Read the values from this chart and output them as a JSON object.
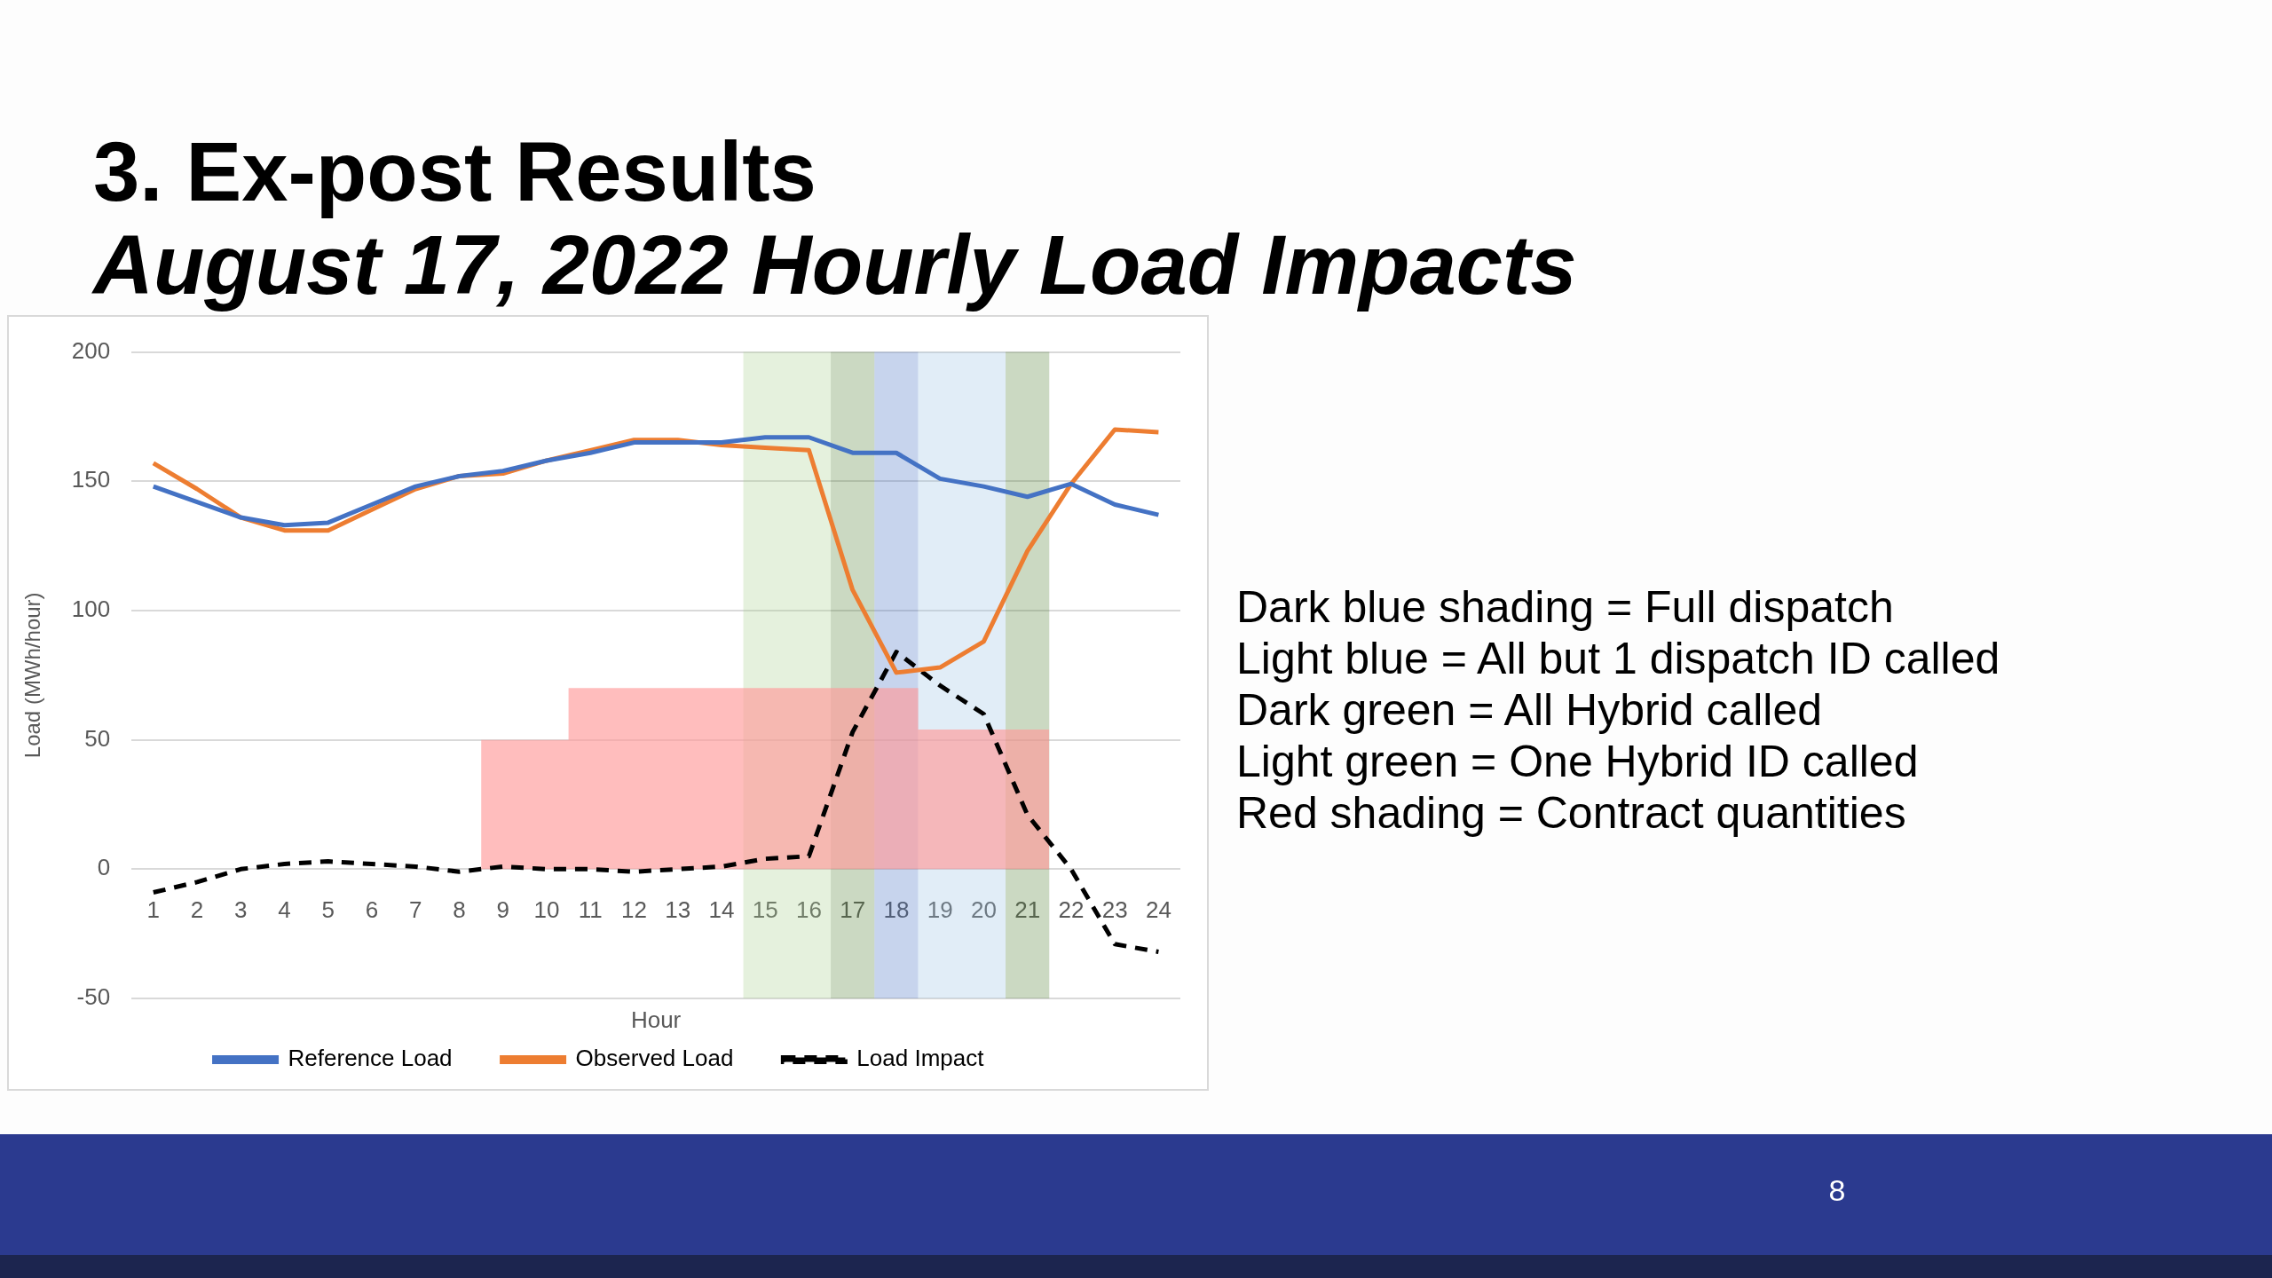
{
  "chart_data": {
    "type": "line",
    "title": "3. Ex-post Results",
    "subtitle": "August 17, 2022 Hourly Load Impacts",
    "xlabel": "Hour",
    "ylabel": "Load (MWh/hour)",
    "x": [
      1,
      2,
      3,
      4,
      5,
      6,
      7,
      8,
      9,
      10,
      11,
      12,
      13,
      14,
      15,
      16,
      17,
      18,
      19,
      20,
      21,
      22,
      23,
      24
    ],
    "xlim": [
      0.5,
      24.5
    ],
    "xticks": [
      1,
      2,
      3,
      4,
      5,
      6,
      7,
      8,
      9,
      10,
      11,
      12,
      13,
      14,
      15,
      16,
      17,
      18,
      19,
      20,
      21,
      22,
      23,
      24
    ],
    "ylim": [
      -50,
      200
    ],
    "yticks": [
      -50,
      0,
      50,
      100,
      150,
      200
    ],
    "grid": "y",
    "legend": "bottom",
    "marker": "none",
    "series": [
      {
        "type": "area",
        "color": "#ff9999",
        "x": [
          8.5,
          10.5,
          10.5,
          18.5,
          18.5,
          21.5
        ],
        "values": [
          50,
          50,
          70,
          70,
          54,
          54
        ]
      },
      {
        "name": "Reference Load",
        "color": "#4472c4",
        "line_style": "solid",
        "values": [
          148,
          142,
          136,
          133,
          134,
          141,
          148,
          152,
          154,
          158,
          161,
          165,
          165,
          165,
          167,
          167,
          161,
          161,
          151,
          148,
          144,
          149,
          141,
          137
        ]
      },
      {
        "name": "Observed Load",
        "color": "#ed7d31",
        "line_style": "solid",
        "values": [
          157,
          147,
          136,
          131,
          131,
          139,
          147,
          152,
          153,
          158,
          162,
          166,
          166,
          164,
          163,
          162,
          108,
          76,
          78,
          88,
          123,
          149,
          170,
          169
        ]
      },
      {
        "name": "Load Impact",
        "color": "#000000",
        "line_style": "dashed",
        "values": [
          -9,
          -5,
          0,
          2,
          3,
          2,
          1,
          -1,
          1,
          0,
          0,
          -1,
          0,
          1,
          4,
          5,
          53,
          84,
          71,
          60,
          21,
          0,
          -29,
          -32
        ]
      }
    ],
    "bands": [
      {
        "axis": "x",
        "from": 14.5,
        "to": 16.5,
        "color": "#a9d18e"
      },
      {
        "axis": "x",
        "from": 16.5,
        "to": 17.5,
        "color": "#548235"
      },
      {
        "axis": "x",
        "from": 17.5,
        "to": 18.5,
        "color": "#4472c4"
      },
      {
        "axis": "x",
        "from": 18.5,
        "to": 20.5,
        "color": "#9dc3e6"
      },
      {
        "axis": "x",
        "from": 20.5,
        "to": 21.5,
        "color": "#548235"
      }
    ],
    "annotations": [
      "Dark blue shading = Full dispatch",
      "Light blue = All but 1 dispatch ID called",
      "Dark green = All Hybrid called",
      "Light green = One Hybrid ID called",
      "Red shading = Contract quantities",
      "8"
    ]
  }
}
